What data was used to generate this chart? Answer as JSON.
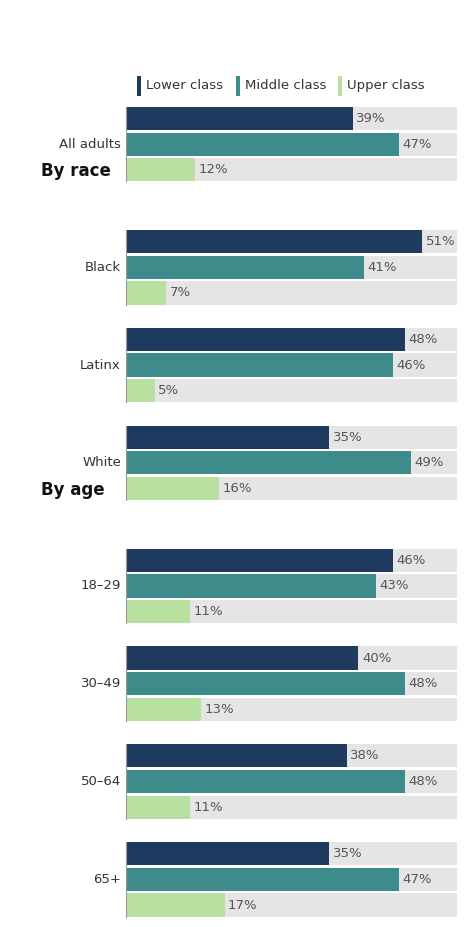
{
  "groups": [
    {
      "label": "All adults",
      "section": "all",
      "lower": 39,
      "middle": 47,
      "upper": 12
    },
    {
      "label": "Black",
      "section": "race",
      "lower": 51,
      "middle": 41,
      "upper": 7
    },
    {
      "label": "Latinx",
      "section": "race",
      "lower": 48,
      "middle": 46,
      "upper": 5
    },
    {
      "label": "White",
      "section": "race",
      "lower": 35,
      "middle": 49,
      "upper": 16
    },
    {
      "label": "18–29",
      "section": "age",
      "lower": 46,
      "middle": 43,
      "upper": 11
    },
    {
      "label": "30–49",
      "section": "age",
      "lower": 40,
      "middle": 48,
      "upper": 13
    },
    {
      "label": "50–64",
      "section": "age",
      "lower": 38,
      "middle": 48,
      "upper": 11
    },
    {
      "label": "65+",
      "section": "age",
      "lower": 35,
      "middle": 47,
      "upper": 17
    }
  ],
  "colors": {
    "lower": "#1e3a5f",
    "middle": "#3d8b8b",
    "upper": "#b8e0a0"
  },
  "bar_bg_color": "#e5e5e5",
  "fig_bg_color": "#ffffff",
  "label_color": "#333333",
  "pct_color": "#555555",
  "header_color": "#111111",
  "vline_color": "#999999",
  "legend_items": [
    "Lower class",
    "Middle class",
    "Upper class"
  ],
  "legend_color_keys": [
    "lower",
    "middle",
    "upper"
  ],
  "xlim_max": 57,
  "bar_height": 0.55,
  "bar_gap": 0.06,
  "group_sep": 0.55,
  "section_sep": 0.9,
  "label_fontsize": 9.5,
  "section_fontsize": 12,
  "legend_fontsize": 9.5,
  "pct_fontsize": 9.5
}
